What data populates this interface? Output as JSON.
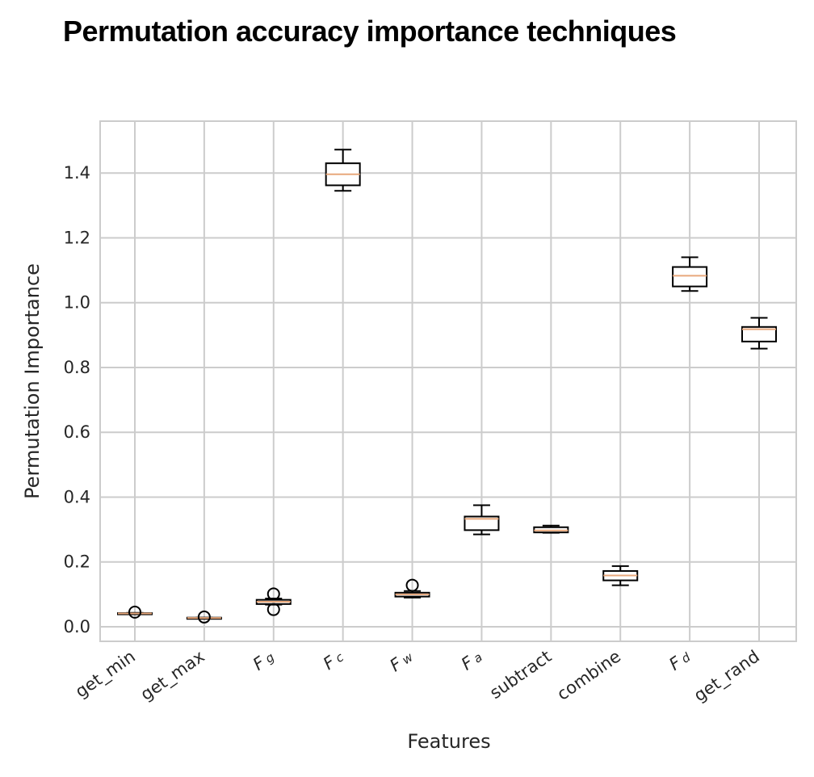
{
  "title": "Permutation accuracy importance techniques",
  "chart_data": {
    "type": "box",
    "title": "Permutation accuracy importance techniques",
    "xlabel": "Features",
    "ylabel": "Permutation Importance",
    "ylim": [
      -0.045,
      1.56
    ],
    "yticks": [
      "0.0",
      "0.2",
      "0.4",
      "0.6",
      "0.8",
      "1.0",
      "1.2",
      "1.4"
    ],
    "grid": true,
    "categories": [
      {
        "label": "get_min",
        "base": "get_min",
        "sub": ""
      },
      {
        "label": "get_max",
        "base": "get_max",
        "sub": ""
      },
      {
        "label": "F_g",
        "base": "F",
        "sub": "g"
      },
      {
        "label": "F_c",
        "base": "F",
        "sub": "c"
      },
      {
        "label": "F_w",
        "base": "F",
        "sub": "w"
      },
      {
        "label": "F_a",
        "base": "F",
        "sub": "a"
      },
      {
        "label": "subtract",
        "base": "subtract",
        "sub": ""
      },
      {
        "label": "combine",
        "base": "combine",
        "sub": ""
      },
      {
        "label": "F_d",
        "base": "F",
        "sub": "d"
      },
      {
        "label": "get_rand",
        "base": "get_rand",
        "sub": ""
      }
    ],
    "boxes": [
      {
        "whislo": 0.04,
        "q1": 0.04,
        "med": 0.041,
        "q3": 0.042,
        "whishi": 0.043,
        "fliers": [
          0.045
        ]
      },
      {
        "whislo": 0.026,
        "q1": 0.026,
        "med": 0.027,
        "q3": 0.028,
        "whishi": 0.028,
        "fliers": [
          0.03
        ]
      },
      {
        "whislo": 0.068,
        "q1": 0.07,
        "med": 0.077,
        "q3": 0.083,
        "whishi": 0.087,
        "fliers": [
          0.101,
          0.053
        ]
      },
      {
        "whislo": 1.345,
        "q1": 1.362,
        "med": 1.396,
        "q3": 1.43,
        "whishi": 1.472,
        "fliers": []
      },
      {
        "whislo": 0.09,
        "q1": 0.093,
        "med": 0.1,
        "q3": 0.105,
        "whishi": 0.11,
        "fliers": [
          0.128
        ]
      },
      {
        "whislo": 0.285,
        "q1": 0.298,
        "med": 0.333,
        "q3": 0.34,
        "whishi": 0.375,
        "fliers": []
      },
      {
        "whislo": 0.29,
        "q1": 0.291,
        "med": 0.297,
        "q3": 0.307,
        "whishi": 0.312,
        "fliers": []
      },
      {
        "whislo": 0.128,
        "q1": 0.143,
        "med": 0.158,
        "q3": 0.172,
        "whishi": 0.187,
        "fliers": []
      },
      {
        "whislo": 1.036,
        "q1": 1.05,
        "med": 1.083,
        "q3": 1.11,
        "whishi": 1.14,
        "fliers": []
      },
      {
        "whislo": 0.858,
        "q1": 0.88,
        "med": 0.918,
        "q3": 0.925,
        "whishi": 0.953,
        "fliers": []
      }
    ],
    "colors": {
      "box": "#000000",
      "median": "#e8a87c",
      "grid": "#cccccc",
      "frame": "#cccccc"
    }
  }
}
